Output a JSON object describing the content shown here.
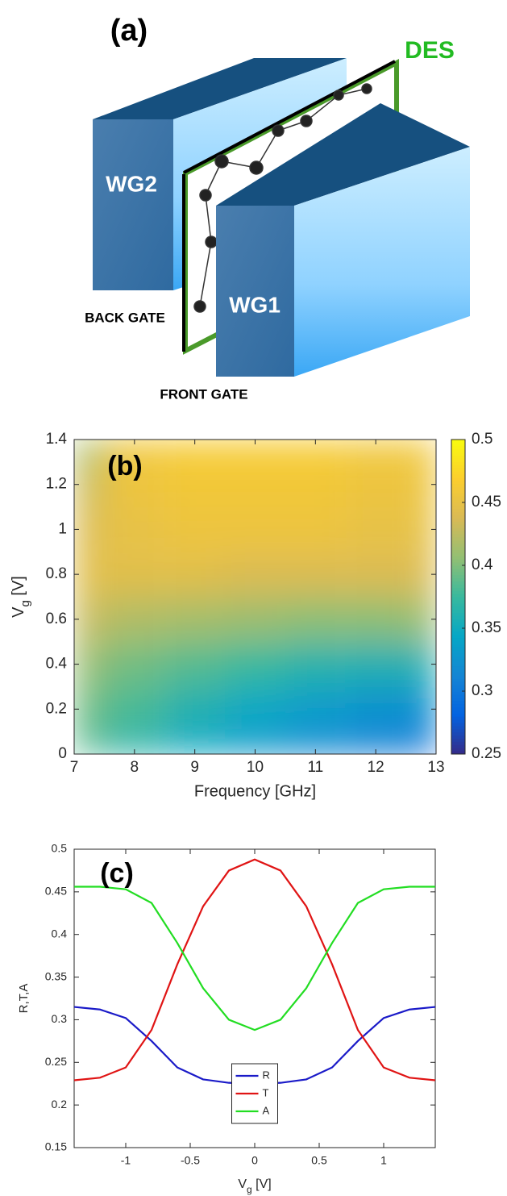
{
  "diagram": {
    "label": "(a)",
    "des": "DES",
    "wg2": "WG2",
    "wg1": "WG1",
    "back_gate": "BACK GATE",
    "front_gate": "FRONT GATE"
  },
  "chart_data": [
    {
      "type": "heatmap",
      "annotation": "(b)",
      "xlabel": "Frequency [GHz]",
      "ylabel": {
        "base": "V",
        "sub": "g",
        "rest": " [V]"
      },
      "colormap": "parula",
      "x": [
        7,
        8,
        9,
        10,
        11,
        12,
        13
      ],
      "y": [
        0,
        0.2,
        0.4,
        0.6,
        0.8,
        1,
        1.2,
        1.4
      ],
      "z": [
        [
          0.385,
          0.365,
          0.345,
          0.33,
          0.315,
          0.305,
          0.295
        ],
        [
          0.395,
          0.38,
          0.36,
          0.345,
          0.335,
          0.325,
          0.32
        ],
        [
          0.41,
          0.395,
          0.385,
          0.375,
          0.365,
          0.36,
          0.36
        ],
        [
          0.43,
          0.42,
          0.415,
          0.41,
          0.405,
          0.405,
          0.41
        ],
        [
          0.445,
          0.445,
          0.445,
          0.44,
          0.44,
          0.44,
          0.44
        ],
        [
          0.44,
          0.45,
          0.455,
          0.455,
          0.455,
          0.45,
          0.45
        ],
        [
          0.43,
          0.455,
          0.46,
          0.46,
          0.46,
          0.455,
          0.455
        ],
        [
          0.41,
          0.46,
          0.465,
          0.465,
          0.465,
          0.46,
          0.46
        ]
      ],
      "xlim": [
        7,
        13
      ],
      "xticks": [
        7,
        8,
        9,
        10,
        11,
        12,
        13
      ],
      "ylim": [
        0,
        1.4
      ],
      "yticks": [
        0,
        0.2,
        0.4,
        0.6,
        0.8,
        1,
        1.2,
        1.4
      ],
      "clim": [
        0.25,
        0.5
      ],
      "cticks": [
        0.25,
        0.3,
        0.35,
        0.4,
        0.45,
        0.5
      ]
    },
    {
      "type": "line",
      "annotation": "(c)",
      "xlabel": {
        "base": "V",
        "sub": "g",
        "rest": " [V]"
      },
      "ylabel": "R,T,A",
      "x": [
        -1.4,
        -1.2,
        -1,
        -0.8,
        -0.6,
        -0.4,
        -0.2,
        0,
        0.2,
        0.4,
        0.6,
        0.8,
        1,
        1.2,
        1.4
      ],
      "series": [
        {
          "name": "R",
          "color": "#1a1ac8",
          "values": [
            0.315,
            0.312,
            0.302,
            0.275,
            0.244,
            0.23,
            0.226,
            0.225,
            0.226,
            0.23,
            0.244,
            0.275,
            0.302,
            0.312,
            0.315
          ]
        },
        {
          "name": "T",
          "color": "#e01414",
          "values": [
            0.229,
            0.232,
            0.244,
            0.288,
            0.365,
            0.433,
            0.475,
            0.488,
            0.475,
            0.433,
            0.365,
            0.288,
            0.244,
            0.232,
            0.229
          ]
        },
        {
          "name": "A",
          "color": "#22dd22",
          "values": [
            0.456,
            0.456,
            0.453,
            0.437,
            0.39,
            0.337,
            0.3,
            0.288,
            0.3,
            0.337,
            0.39,
            0.437,
            0.453,
            0.456,
            0.456
          ]
        }
      ],
      "xlim": [
        -1.4,
        1.4
      ],
      "xticks": [
        -1,
        -0.5,
        0,
        0.5,
        1
      ],
      "ylim": [
        0.15,
        0.5
      ],
      "yticks": [
        0.15,
        0.2,
        0.25,
        0.3,
        0.35,
        0.4,
        0.45,
        0.5
      ],
      "legend": "lower center"
    }
  ]
}
